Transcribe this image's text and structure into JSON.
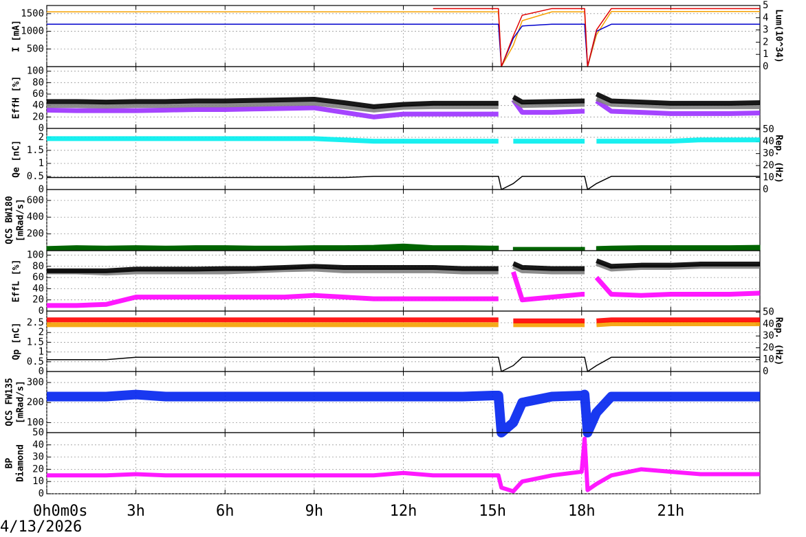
{
  "chart_data": [
    {
      "type": "line",
      "ylabel": [
        "I [mA]"
      ],
      "y2label": "Lum(10^34)",
      "x": [
        0,
        1,
        2,
        3,
        4,
        5,
        6,
        7,
        8,
        9,
        10,
        11,
        12,
        13,
        14,
        15,
        15.2,
        15.3,
        15.7,
        16,
        17,
        18,
        18.1,
        18.2,
        18.5,
        19,
        20,
        21,
        22,
        23,
        24
      ],
      "xlim": [
        0,
        24
      ],
      "xticks": [
        0,
        3,
        6,
        9,
        12,
        15,
        18,
        21
      ],
      "ylim": [
        0,
        1730
      ],
      "yticks": [
        500,
        1000,
        1500
      ],
      "y2lim": [
        0,
        5
      ],
      "y2ticks": [
        0,
        1,
        2,
        3,
        4,
        5
      ],
      "grid": true,
      "series": [
        {
          "color": "#f5a000",
          "values": [
            1550,
            1550,
            1550,
            1550,
            1550,
            1550,
            1550,
            1550,
            1550,
            1550,
            1550,
            1550,
            1550,
            1550,
            1550,
            1550,
            1550,
            0,
            600,
            1300,
            1550,
            1550,
            1550,
            0,
            900,
            1560,
            1560,
            1560,
            1560,
            1560,
            1560
          ]
        },
        {
          "color": "#0000cc",
          "values": [
            1200,
            1200,
            1200,
            1200,
            1200,
            1200,
            1200,
            1200,
            1200,
            1200,
            1200,
            1200,
            1200,
            1200,
            1200,
            1200,
            1200,
            0,
            800,
            1150,
            1200,
            1200,
            1200,
            0,
            1000,
            1200,
            1200,
            1200,
            1200,
            1200,
            1200
          ]
        },
        {
          "color": "#e00000",
          "axis": "y2",
          "values": [
            null,
            null,
            null,
            null,
            null,
            null,
            null,
            null,
            null,
            null,
            null,
            null,
            null,
            4.75,
            4.75,
            4.75,
            4.75,
            0,
            2.5,
            4.2,
            4.75,
            4.75,
            4.75,
            0,
            3,
            4.75,
            4.75,
            4.75,
            4.75,
            4.75,
            4.75
          ]
        }
      ]
    },
    {
      "type": "line",
      "ylabel": [
        "EffH [%]"
      ],
      "x": [
        0,
        1,
        2,
        3,
        4,
        5,
        6,
        7,
        8,
        9,
        10,
        11,
        12,
        13,
        14,
        15,
        15.2,
        15.3,
        15.7,
        16,
        17,
        18,
        18.1,
        18.2,
        18.5,
        19,
        20,
        21,
        22,
        23,
        24
      ],
      "xlim": [
        0,
        24
      ],
      "xticks": [
        0,
        3,
        6,
        9,
        12,
        15,
        18,
        21
      ],
      "ylim": [
        0,
        108
      ],
      "yticks": [
        0,
        20,
        40,
        60,
        80,
        100
      ],
      "grid": true,
      "series": [
        {
          "color": "#9b30ff",
          "values": [
            32,
            31,
            31,
            31,
            32,
            33,
            33,
            34,
            35,
            36,
            28,
            20,
            25,
            25,
            25,
            25,
            25,
            null,
            50,
            28,
            28,
            30,
            30,
            null,
            48,
            30,
            28,
            26,
            26,
            26,
            27
          ]
        },
        {
          "color": "#808080",
          "values": [
            40,
            40,
            39,
            40,
            40,
            41,
            41,
            42,
            43,
            44,
            38,
            32,
            37,
            38,
            38,
            38,
            38,
            null,
            50,
            40,
            41,
            42,
            42,
            null,
            52,
            42,
            40,
            38,
            38,
            38,
            38
          ]
        },
        {
          "color": "#000000",
          "values": [
            47,
            47,
            46,
            47,
            47,
            48,
            48,
            49,
            50,
            51,
            45,
            38,
            42,
            44,
            44,
            44,
            44,
            null,
            55,
            46,
            47,
            48,
            48,
            null,
            60,
            48,
            46,
            44,
            44,
            44,
            45
          ]
        }
      ]
    },
    {
      "type": "line",
      "ylabel": [
        "Qe [nC]"
      ],
      "y2label": "Rep. (Hz)",
      "x": [
        0,
        1,
        2,
        3,
        4,
        5,
        6,
        7,
        8,
        9,
        10,
        11,
        12,
        13,
        14,
        15,
        15.2,
        15.3,
        15.7,
        16,
        17,
        18,
        18.1,
        18.2,
        18.5,
        19,
        20,
        21,
        22,
        23,
        24
      ],
      "xlim": [
        0,
        24
      ],
      "xticks": [
        0,
        3,
        6,
        9,
        12,
        15,
        18,
        21
      ],
      "ylim": [
        0,
        2.34
      ],
      "yticks": [
        0,
        0.5,
        1,
        1.5,
        2
      ],
      "y2lim": [
        0,
        51
      ],
      "y2ticks": [
        0,
        10,
        20,
        30,
        40,
        50
      ],
      "grid": true,
      "series": [
        {
          "color": "#00eeee",
          "values": [
            1.95,
            1.95,
            1.95,
            1.95,
            1.95,
            1.95,
            1.95,
            1.95,
            1.95,
            1.95,
            1.9,
            1.85,
            1.85,
            1.85,
            1.85,
            1.85,
            1.85,
            null,
            1.85,
            1.85,
            1.85,
            1.85,
            1.85,
            null,
            1.85,
            1.85,
            1.85,
            1.85,
            1.9,
            1.9,
            1.9
          ]
        },
        {
          "color": "#000000",
          "axis": "y2",
          "values": [
            10,
            10,
            10,
            10,
            10,
            10,
            10,
            10,
            10,
            10,
            10,
            11,
            11,
            11,
            11,
            11,
            11,
            0,
            5,
            11,
            11,
            11,
            11,
            0,
            5,
            11,
            11,
            11,
            11,
            11,
            11
          ]
        }
      ]
    },
    {
      "type": "area",
      "ylabel": [
        "QCS BW180",
        "[mRad/s]"
      ],
      "x": [
        0,
        1,
        2,
        3,
        4,
        5,
        6,
        7,
        8,
        9,
        10,
        11,
        12,
        13,
        14,
        15,
        15.2,
        15.3,
        15.7,
        16,
        17,
        18,
        18.1,
        18.2,
        18.5,
        19,
        20,
        21,
        22,
        23,
        24
      ],
      "xlim": [
        0,
        24
      ],
      "xticks": [
        0,
        3,
        6,
        9,
        12,
        15,
        18,
        21
      ],
      "ylim": [
        0,
        730
      ],
      "yticks": [
        200,
        400,
        600
      ],
      "grid": true,
      "series": [
        {
          "color": "#006400",
          "values": [
            50,
            60,
            55,
            60,
            55,
            60,
            60,
            55,
            55,
            60,
            60,
            65,
            80,
            60,
            60,
            55,
            55,
            null,
            40,
            40,
            40,
            40,
            40,
            null,
            50,
            55,
            60,
            60,
            60,
            60,
            65
          ]
        }
      ]
    },
    {
      "type": "line",
      "ylabel": [
        "EffL [%]"
      ],
      "x": [
        0,
        1,
        2,
        3,
        4,
        5,
        6,
        7,
        8,
        9,
        10,
        11,
        12,
        13,
        14,
        15,
        15.2,
        15.3,
        15.7,
        16,
        17,
        18,
        18.1,
        18.2,
        18.5,
        19,
        20,
        21,
        22,
        23,
        24
      ],
      "xlim": [
        0,
        24
      ],
      "xticks": [
        0,
        3,
        6,
        9,
        12,
        15,
        18,
        21
      ],
      "ylim": [
        0,
        108
      ],
      "yticks": [
        0,
        20,
        40,
        60,
        80,
        100
      ],
      "grid": true,
      "series": [
        {
          "color": "#ff00ff",
          "values": [
            10,
            10,
            12,
            25,
            25,
            25,
            25,
            25,
            25,
            28,
            25,
            22,
            22,
            22,
            22,
            22,
            22,
            null,
            70,
            20,
            25,
            30,
            30,
            null,
            60,
            30,
            28,
            30,
            30,
            30,
            32
          ]
        },
        {
          "color": "#808080",
          "values": [
            70,
            70,
            68,
            70,
            70,
            70,
            70,
            72,
            74,
            75,
            72,
            72,
            72,
            72,
            70,
            70,
            70,
            null,
            80,
            72,
            70,
            70,
            70,
            null,
            85,
            75,
            78,
            78,
            80,
            80,
            80
          ]
        },
        {
          "color": "#000000",
          "values": [
            72,
            72,
            72,
            75,
            75,
            75,
            76,
            76,
            78,
            80,
            78,
            78,
            78,
            78,
            76,
            76,
            76,
            null,
            85,
            78,
            76,
            76,
            76,
            null,
            90,
            80,
            82,
            82,
            84,
            84,
            84
          ]
        }
      ]
    },
    {
      "type": "line",
      "ylabel": [
        "Qp [nC]"
      ],
      "y2label": "Rep. (Hz)",
      "x": [
        0,
        1,
        2,
        3,
        4,
        5,
        6,
        7,
        8,
        9,
        10,
        11,
        12,
        13,
        14,
        15,
        15.2,
        15.3,
        15.7,
        16,
        17,
        18,
        18.1,
        18.2,
        18.5,
        19,
        20,
        21,
        22,
        23,
        24
      ],
      "xlim": [
        0,
        24
      ],
      "xticks": [
        0,
        3,
        6,
        9,
        12,
        15,
        18,
        21
      ],
      "ylim": [
        0,
        3.1
      ],
      "yticks": [
        0,
        0.5,
        1,
        1.5,
        2,
        2.5
      ],
      "y2lim": [
        0,
        51
      ],
      "y2ticks": [
        0,
        10,
        20,
        30,
        40,
        50
      ],
      "grid": true,
      "series": [
        {
          "color": "#f5a000",
          "values": [
            2.4,
            2.4,
            2.4,
            2.4,
            2.4,
            2.4,
            2.4,
            2.4,
            2.4,
            2.4,
            2.4,
            2.4,
            2.4,
            2.4,
            2.4,
            2.4,
            2.4,
            null,
            2.4,
            2.4,
            2.4,
            2.4,
            2.4,
            null,
            2.4,
            2.45,
            2.45,
            2.45,
            2.45,
            2.45,
            2.45
          ]
        },
        {
          "color": "#ff0000",
          "values": [
            2.65,
            2.65,
            2.65,
            2.65,
            2.65,
            2.65,
            2.65,
            2.65,
            2.65,
            2.65,
            2.65,
            2.65,
            2.65,
            2.65,
            2.65,
            2.65,
            2.65,
            null,
            2.6,
            2.6,
            2.6,
            2.6,
            2.6,
            null,
            2.6,
            2.65,
            2.65,
            2.65,
            2.65,
            2.65,
            2.65
          ]
        },
        {
          "color": "#000000",
          "axis": "y2",
          "values": [
            10,
            10,
            10,
            12,
            12,
            12,
            12,
            12,
            12,
            12,
            12,
            12,
            12,
            12,
            12,
            12,
            12,
            0,
            5,
            12,
            12,
            12,
            12,
            0,
            5,
            12,
            12,
            12,
            12,
            12,
            12
          ]
        }
      ]
    },
    {
      "type": "line",
      "ylabel": [
        "QCS FW135",
        "[mRad/s]"
      ],
      "x": [
        0,
        1,
        2,
        3,
        4,
        5,
        6,
        7,
        8,
        9,
        10,
        11,
        12,
        13,
        14,
        15,
        15.2,
        15.3,
        15.7,
        16,
        17,
        18,
        18.1,
        18.2,
        18.5,
        19,
        20,
        21,
        22,
        23,
        24
      ],
      "xlim": [
        0,
        24
      ],
      "xticks": [
        0,
        3,
        6,
        9,
        12,
        15,
        18,
        21
      ],
      "ylim": [
        50,
        355
      ],
      "yticks": [
        50,
        100,
        200,
        300
      ],
      "grid": true,
      "series": [
        {
          "color": "#0022ee",
          "values": [
            230,
            230,
            230,
            240,
            230,
            230,
            230,
            230,
            230,
            230,
            230,
            230,
            230,
            230,
            230,
            235,
            235,
            50,
            100,
            200,
            230,
            235,
            240,
            50,
            150,
            230,
            230,
            230,
            230,
            230,
            230
          ]
        }
      ]
    },
    {
      "type": "line",
      "ylabel": [
        "BP",
        "Diamond"
      ],
      "x": [
        0,
        1,
        2,
        3,
        4,
        5,
        6,
        7,
        8,
        9,
        10,
        11,
        12,
        13,
        14,
        15,
        15.2,
        15.3,
        15.7,
        16,
        17,
        18,
        18.1,
        18.2,
        18.5,
        19,
        20,
        21,
        22,
        23,
        24
      ],
      "xlim": [
        0,
        24
      ],
      "xticks": [
        {
          "value": 0,
          "label": "0h0m0s"
        },
        {
          "value": 3,
          "label": "3h"
        },
        {
          "value": 6,
          "label": "6h"
        },
        {
          "value": 9,
          "label": "9h"
        },
        {
          "value": 12,
          "label": "12h"
        },
        {
          "value": 15,
          "label": "15h"
        },
        {
          "value": 18,
          "label": "18h"
        },
        {
          "value": 21,
          "label": "21h"
        }
      ],
      "date": "4/13/2026",
      "ylim": [
        0,
        50
      ],
      "yticks": [
        0,
        10,
        20,
        30,
        40
      ],
      "grid": true,
      "series": [
        {
          "color": "#ff00ff",
          "values": [
            15,
            15,
            15,
            16,
            15,
            15,
            15,
            15,
            15,
            15,
            15,
            15,
            17,
            15,
            15,
            15,
            15,
            5,
            2,
            10,
            15,
            18,
            45,
            3,
            8,
            15,
            20,
            18,
            16,
            16,
            16
          ]
        }
      ]
    }
  ]
}
